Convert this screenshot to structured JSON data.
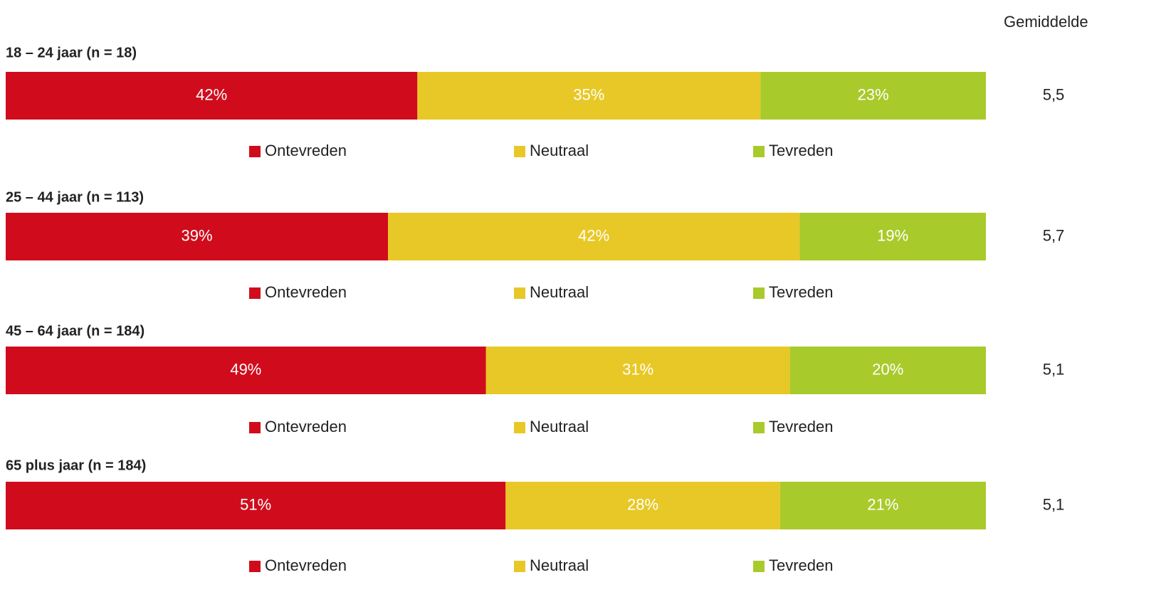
{
  "column_header": "Gemiddelde",
  "chart_data": [
    {
      "type": "bar",
      "stacked": true,
      "orientation": "horizontal",
      "title": "18 – 24 jaar (n = 18)",
      "categories": [
        "18 – 24 jaar (n = 18)"
      ],
      "xlim": [
        0,
        100
      ],
      "series": [
        {
          "name": "Ontevreden",
          "color": "#d00c1c",
          "values": [
            42
          ],
          "value_labels": [
            "42%"
          ]
        },
        {
          "name": "Neutraal",
          "color": "#e8c826",
          "values": [
            35
          ],
          "value_labels": [
            "35%"
          ]
        },
        {
          "name": "Tevreden",
          "color": "#a9ca2b",
          "values": [
            23
          ],
          "value_labels": [
            "23%"
          ]
        }
      ],
      "mean": {
        "value": 5.5,
        "label": "5,5"
      }
    },
    {
      "type": "bar",
      "stacked": true,
      "orientation": "horizontal",
      "title": "25 – 44 jaar (n = 113)",
      "categories": [
        "25 – 44 jaar (n = 113)"
      ],
      "xlim": [
        0,
        100
      ],
      "series": [
        {
          "name": "Ontevreden",
          "color": "#d00c1c",
          "values": [
            39
          ],
          "value_labels": [
            "39%"
          ]
        },
        {
          "name": "Neutraal",
          "color": "#e8c826",
          "values": [
            42
          ],
          "value_labels": [
            "42%"
          ]
        },
        {
          "name": "Tevreden",
          "color": "#a9ca2b",
          "values": [
            19
          ],
          "value_labels": [
            "19%"
          ]
        }
      ],
      "mean": {
        "value": 5.7,
        "label": "5,7"
      }
    },
    {
      "type": "bar",
      "stacked": true,
      "orientation": "horizontal",
      "title": "45 – 64 jaar (n = 184)",
      "categories": [
        "45 – 64 jaar (n = 184)"
      ],
      "xlim": [
        0,
        100
      ],
      "series": [
        {
          "name": "Ontevreden",
          "color": "#d00c1c",
          "values": [
            49
          ],
          "value_labels": [
            "49%"
          ]
        },
        {
          "name": "Neutraal",
          "color": "#e8c826",
          "values": [
            31
          ],
          "value_labels": [
            "31%"
          ]
        },
        {
          "name": "Tevreden",
          "color": "#a9ca2b",
          "values": [
            20
          ],
          "value_labels": [
            "20%"
          ]
        }
      ],
      "mean": {
        "value": 5.1,
        "label": "5,1"
      }
    },
    {
      "type": "bar",
      "stacked": true,
      "orientation": "horizontal",
      "title": "65 plus jaar (n = 184)",
      "categories": [
        "65 plus jaar (n = 184)"
      ],
      "xlim": [
        0,
        100
      ],
      "series": [
        {
          "name": "Ontevreden",
          "color": "#d00c1c",
          "values": [
            51
          ],
          "value_labels": [
            "51%"
          ]
        },
        {
          "name": "Neutraal",
          "color": "#e8c826",
          "values": [
            28
          ],
          "value_labels": [
            "28%"
          ]
        },
        {
          "name": "Tevreden",
          "color": "#a9ca2b",
          "values": [
            21
          ],
          "value_labels": [
            "21%"
          ]
        }
      ],
      "mean": {
        "value": 5.1,
        "label": "5,1"
      }
    }
  ]
}
